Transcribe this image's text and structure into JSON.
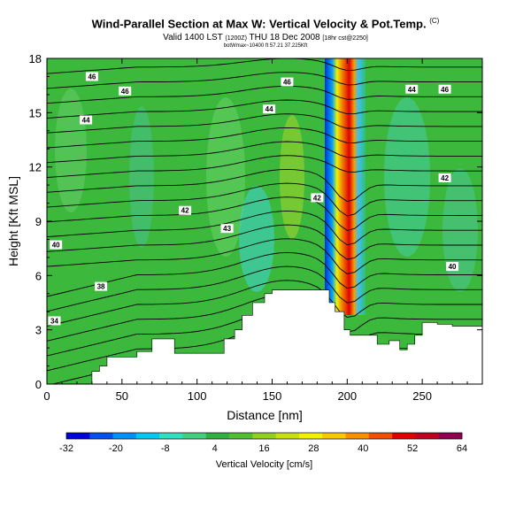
{
  "header": {
    "title": "Wind-Parallel Section at Max W: Vertical Velocity & Pot.Temp.",
    "copyright_mark": "(C)",
    "valid_line": "Valid 1400 LST",
    "valid_small": "(1200Z)",
    "valid_day": "THU 18 Dec 2008",
    "valid_tail": "[18hr cst@2250]",
    "info_line": "botWmax~10400 ft 57.21 37.225Kft"
  },
  "chart_data": {
    "type": "heatmap",
    "xlabel": "Distance [nm]",
    "ylabel": "Height [Kft MSL]",
    "xlim": [
      0,
      290
    ],
    "ylim": [
      0,
      18
    ],
    "x_ticks": [
      "0",
      "50",
      "100",
      "150",
      "200",
      "250"
    ],
    "y_ticks": [
      "0",
      "3",
      "6",
      "9",
      "12",
      "15",
      "18"
    ],
    "colorbar": {
      "label": "Vertical Velocity [cm/s]",
      "tick_labels": [
        "-32",
        "-20",
        "-8",
        "4",
        "16",
        "28",
        "40",
        "52",
        "64"
      ],
      "colors": [
        "#0000d8",
        "#0050f0",
        "#0090f8",
        "#00c8f0",
        "#30e0c0",
        "#40d080",
        "#30b040",
        "#50c030",
        "#90d020",
        "#c8e010",
        "#f0f000",
        "#f8c800",
        "#f89000",
        "#f05000",
        "#e00000",
        "#c00020",
        "#900050"
      ]
    },
    "velocity_max_column": {
      "x": [
        180,
        185,
        190,
        195,
        200,
        205,
        210
      ],
      "w_cm_s": [
        -8,
        -32,
        52,
        64,
        40,
        -20,
        -8
      ]
    },
    "terrain": {
      "x": [
        0,
        20,
        30,
        35,
        40,
        60,
        70,
        85,
        110,
        118,
        125,
        130,
        137,
        140,
        145,
        150,
        155,
        160,
        170,
        180,
        188,
        192,
        198,
        202,
        210,
        220,
        228,
        235,
        240,
        245,
        250,
        260,
        270,
        280,
        290
      ],
      "height_kft": [
        0,
        0,
        0.7,
        1.0,
        1.5,
        1.8,
        2.5,
        1.7,
        1.7,
        2.5,
        3.0,
        3.8,
        4.5,
        4.5,
        5.0,
        5.2,
        5.2,
        5.2,
        5.2,
        5.2,
        4.5,
        4.0,
        3.0,
        2.7,
        2.7,
        2.2,
        2.4,
        1.9,
        2.2,
        2.7,
        3.4,
        3.3,
        3.2,
        3.2,
        3.2
      ]
    },
    "isentropes": {
      "name": "Potential temperature",
      "labels": [
        {
          "text": "34",
          "x": 5,
          "y": 3.5
        },
        {
          "text": "38",
          "x": 36,
          "y": 5.4
        },
        {
          "text": "40",
          "x": 6,
          "y": 7.7
        },
        {
          "text": "42",
          "x": 92,
          "y": 9.6
        },
        {
          "text": "43",
          "x": 120,
          "y": 8.6
        },
        {
          "text": "42",
          "x": 180,
          "y": 10.3
        },
        {
          "text": "42",
          "x": 265,
          "y": 11.4
        },
        {
          "text": "40",
          "x": 270,
          "y": 6.5
        },
        {
          "text": "44",
          "x": 26,
          "y": 14.6
        },
        {
          "text": "46",
          "x": 52,
          "y": 16.2
        },
        {
          "text": "46",
          "x": 30,
          "y": 17.0
        },
        {
          "text": "44",
          "x": 148,
          "y": 15.2
        },
        {
          "text": "46",
          "x": 160,
          "y": 16.7
        },
        {
          "text": "44",
          "x": 243,
          "y": 16.3
        },
        {
          "text": "46",
          "x": 265,
          "y": 16.3
        }
      ]
    }
  }
}
